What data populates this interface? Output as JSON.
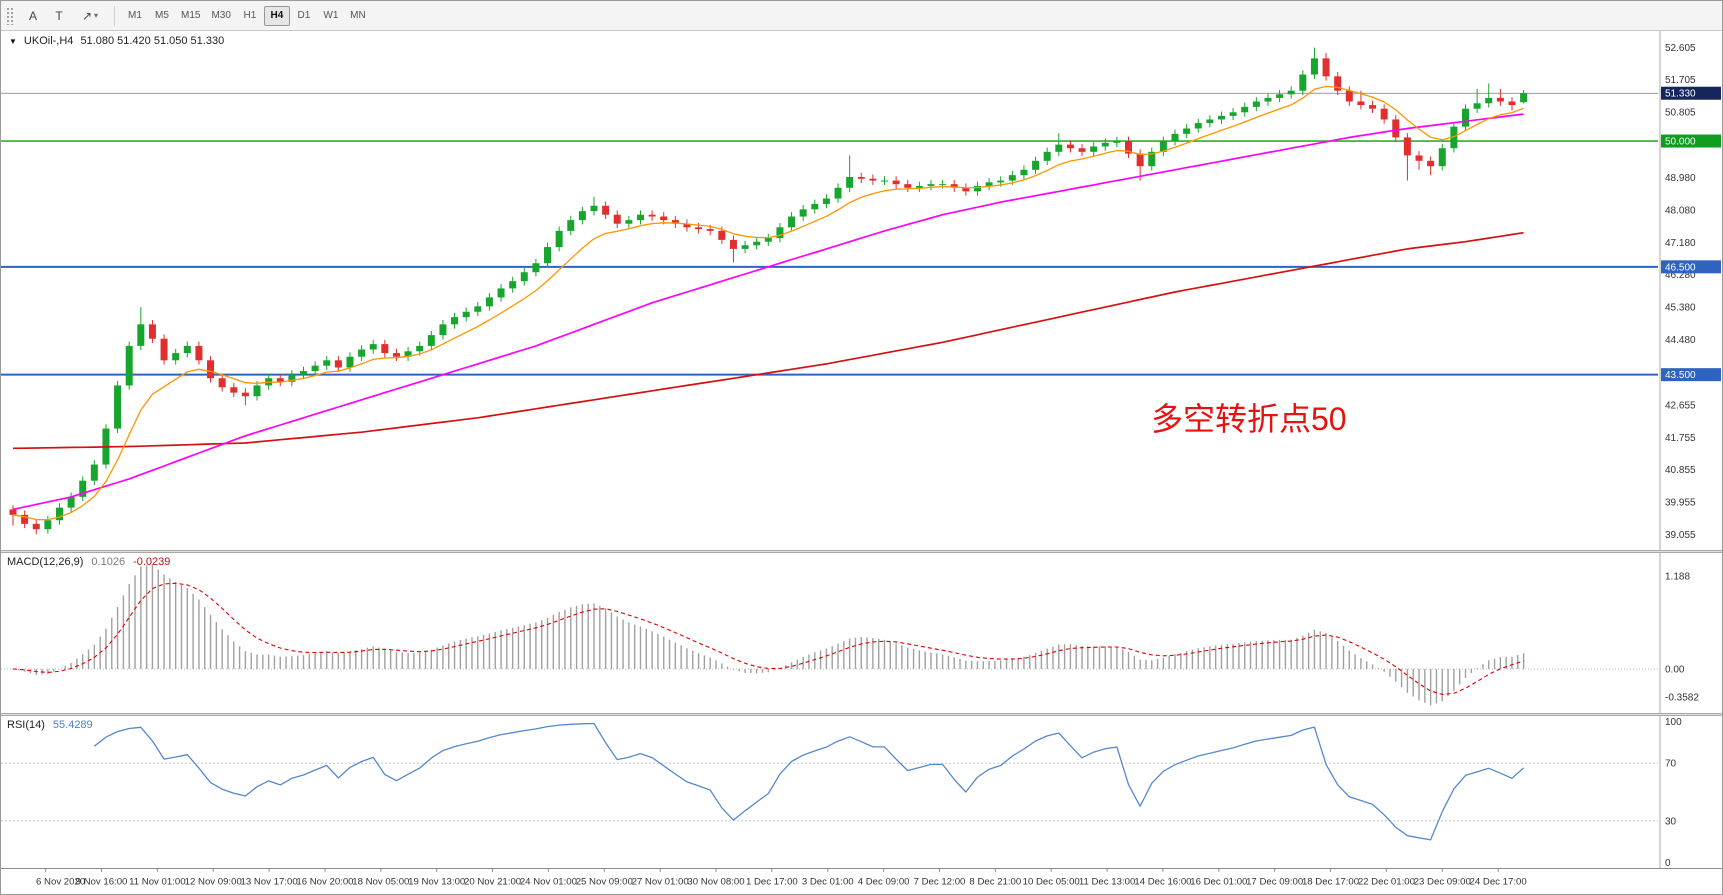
{
  "window": {
    "dropdown_arrow": "▼",
    "title_symbol": "UKOil-,H4",
    "ohlc": "51.080 51.420 51.050 51.330"
  },
  "toolbar": {
    "buttons": [
      {
        "id": "arrow-style",
        "label": "A"
      },
      {
        "id": "text-tool",
        "label": "T"
      }
    ],
    "cursor_tool_icon": "↗",
    "dropdown_caret": "▾",
    "timeframes": [
      "M1",
      "M5",
      "M15",
      "M30",
      "H1",
      "H4",
      "D1",
      "W1",
      "MN"
    ],
    "active_timeframe": "H4"
  },
  "annotation": {
    "text": "多空转折点50",
    "color": "#e81010"
  },
  "indicators": {
    "macd_label": {
      "name": "MACD(12,26,9)",
      "value": "0.1026",
      "signal_value": "-0.0239"
    },
    "rsi_label": {
      "name": "RSI(14)",
      "value": "55.4289"
    }
  },
  "chart_data": {
    "type": "candlestick",
    "symbol": "UKOil-",
    "timeframe": "H4",
    "price_range": [
      38.9,
      52.95
    ],
    "y_axis_labels": [
      "52.605",
      "51.705",
      "50.805",
      "48.980",
      "48.080",
      "47.180",
      "46.280",
      "45.380",
      "44.480",
      "42.655",
      "41.755",
      "40.855",
      "39.955",
      "39.055"
    ],
    "price_badges": [
      {
        "label": "51.330",
        "value": 51.33,
        "bg": "#16265c",
        "line": {
          "color": "#777777",
          "width": 0.8,
          "dash": "none"
        }
      },
      {
        "label": "50.000",
        "value": 50.0,
        "bg": "#0f9d20",
        "line": {
          "color": "#0aa000",
          "width": 1.4,
          "dash": "none"
        }
      },
      {
        "label": "46.500",
        "value": 46.5,
        "bg": "#2f63c0",
        "line": {
          "color": "#2f63c0",
          "width": 2,
          "dash": "none"
        }
      },
      {
        "label": "43.500",
        "value": 43.5,
        "bg": "#2f63c0",
        "line": {
          "color": "#2f63c0",
          "width": 2,
          "dash": "none"
        }
      }
    ],
    "x_axis_labels": [
      "6 Nov 2020",
      "9 Nov 16:00",
      "11 Nov 01:00",
      "12 Nov 09:00",
      "13 Nov 17:00",
      "16 Nov 20:00",
      "18 Nov 05:00",
      "19 Nov 13:00",
      "20 Nov 21:00",
      "24 Nov 01:00",
      "25 Nov 09:00",
      "27 Nov 01:00",
      "30 Nov 08:00",
      "1 Dec 17:00",
      "3 Dec 01:00",
      "4 Dec 09:00",
      "7 Dec 12:00",
      "8 Dec 21:00",
      "10 Dec 05:00",
      "11 Dec 13:00",
      "14 Dec 16:00",
      "16 Dec 01:00",
      "17 Dec 09:00",
      "18 Dec 17:00",
      "22 Dec 01:00",
      "23 Dec 09:00",
      "24 Dec 17:00"
    ],
    "candles": [
      [
        39.75,
        39.87,
        39.3,
        39.6
      ],
      [
        39.6,
        39.72,
        39.23,
        39.35
      ],
      [
        39.35,
        39.47,
        39.06,
        39.2
      ],
      [
        39.2,
        39.57,
        39.08,
        39.45
      ],
      [
        39.45,
        39.92,
        39.33,
        39.8
      ],
      [
        39.8,
        40.22,
        39.68,
        40.1
      ],
      [
        40.1,
        40.67,
        39.98,
        40.55
      ],
      [
        40.55,
        41.12,
        40.43,
        41.0
      ],
      [
        41.0,
        42.12,
        40.88,
        42.0
      ],
      [
        42.0,
        43.32,
        41.88,
        43.2
      ],
      [
        43.2,
        44.42,
        43.08,
        44.3
      ],
      [
        44.3,
        45.38,
        44.18,
        44.9
      ],
      [
        44.9,
        45.02,
        44.38,
        44.5
      ],
      [
        44.5,
        44.62,
        43.78,
        43.9
      ],
      [
        43.9,
        44.22,
        43.78,
        44.1
      ],
      [
        44.1,
        44.42,
        43.98,
        44.3
      ],
      [
        44.3,
        44.42,
        43.78,
        43.9
      ],
      [
        43.9,
        44.02,
        43.28,
        43.4
      ],
      [
        43.4,
        43.52,
        43.03,
        43.15
      ],
      [
        43.15,
        43.27,
        42.88,
        43.0
      ],
      [
        43.0,
        43.12,
        42.65,
        42.9
      ],
      [
        42.9,
        43.32,
        42.78,
        43.2
      ],
      [
        43.2,
        43.52,
        43.08,
        43.4
      ],
      [
        43.4,
        43.52,
        43.18,
        43.3
      ],
      [
        43.3,
        43.62,
        43.18,
        43.5
      ],
      [
        43.5,
        43.72,
        43.38,
        43.6
      ],
      [
        43.6,
        43.87,
        43.48,
        43.75
      ],
      [
        43.75,
        44.02,
        43.63,
        43.9
      ],
      [
        43.9,
        44.02,
        43.58,
        43.7
      ],
      [
        43.7,
        44.12,
        43.58,
        44.0
      ],
      [
        44.0,
        44.32,
        43.88,
        44.2
      ],
      [
        44.2,
        44.47,
        44.08,
        44.35
      ],
      [
        44.35,
        44.47,
        43.98,
        44.1
      ],
      [
        44.1,
        44.22,
        43.88,
        44.0
      ],
      [
        44.0,
        44.27,
        43.88,
        44.15
      ],
      [
        44.15,
        44.42,
        44.03,
        44.3
      ],
      [
        44.3,
        44.72,
        44.18,
        44.6
      ],
      [
        44.6,
        45.02,
        44.48,
        44.9
      ],
      [
        44.9,
        45.22,
        44.78,
        45.1
      ],
      [
        45.1,
        45.37,
        44.98,
        45.25
      ],
      [
        45.25,
        45.52,
        45.13,
        45.4
      ],
      [
        45.4,
        45.77,
        45.28,
        45.65
      ],
      [
        45.65,
        46.02,
        45.53,
        45.9
      ],
      [
        45.9,
        46.22,
        45.78,
        46.1
      ],
      [
        46.1,
        46.47,
        45.98,
        46.35
      ],
      [
        46.35,
        46.72,
        46.23,
        46.6
      ],
      [
        46.6,
        47.17,
        46.48,
        47.05
      ],
      [
        47.05,
        47.62,
        46.93,
        47.5
      ],
      [
        47.5,
        47.92,
        47.38,
        47.8
      ],
      [
        47.8,
        48.17,
        47.68,
        48.05
      ],
      [
        48.05,
        48.45,
        47.93,
        48.2
      ],
      [
        48.2,
        48.32,
        47.83,
        47.95
      ],
      [
        47.95,
        48.07,
        47.58,
        47.7
      ],
      [
        47.7,
        47.92,
        47.58,
        47.8
      ],
      [
        47.8,
        48.07,
        47.68,
        47.95
      ],
      [
        47.95,
        48.07,
        47.78,
        47.9
      ],
      [
        47.9,
        48.02,
        47.68,
        47.8
      ],
      [
        47.8,
        47.92,
        47.58,
        47.7
      ],
      [
        47.7,
        47.82,
        47.48,
        47.6
      ],
      [
        47.6,
        47.72,
        47.43,
        47.55
      ],
      [
        47.55,
        47.67,
        47.38,
        47.5
      ],
      [
        47.5,
        47.62,
        47.13,
        47.25
      ],
      [
        47.25,
        47.37,
        46.62,
        47.0
      ],
      [
        47.0,
        47.22,
        46.88,
        47.1
      ],
      [
        47.1,
        47.32,
        46.98,
        47.2
      ],
      [
        47.2,
        47.42,
        47.08,
        47.3
      ],
      [
        47.3,
        47.72,
        47.18,
        47.6
      ],
      [
        47.6,
        48.02,
        47.48,
        47.9
      ],
      [
        47.9,
        48.22,
        47.78,
        48.1
      ],
      [
        48.1,
        48.37,
        47.98,
        48.25
      ],
      [
        48.25,
        48.52,
        48.13,
        48.4
      ],
      [
        48.4,
        48.82,
        48.28,
        48.7
      ],
      [
        48.7,
        49.6,
        48.58,
        49.0
      ],
      [
        49.0,
        49.12,
        48.83,
        48.95
      ],
      [
        48.95,
        49.07,
        48.78,
        48.9
      ],
      [
        48.9,
        49.02,
        48.78,
        48.9
      ],
      [
        48.9,
        49.02,
        48.68,
        48.8
      ],
      [
        48.8,
        48.92,
        48.58,
        48.7
      ],
      [
        48.7,
        48.87,
        48.58,
        48.75
      ],
      [
        48.75,
        48.92,
        48.63,
        48.8
      ],
      [
        48.8,
        48.92,
        48.68,
        48.8
      ],
      [
        48.8,
        48.92,
        48.58,
        48.7
      ],
      [
        48.7,
        48.82,
        48.48,
        48.6
      ],
      [
        48.6,
        48.87,
        48.48,
        48.75
      ],
      [
        48.75,
        48.97,
        48.63,
        48.85
      ],
      [
        48.85,
        49.02,
        48.73,
        48.9
      ],
      [
        48.9,
        49.17,
        48.78,
        49.05
      ],
      [
        49.05,
        49.32,
        48.93,
        49.2
      ],
      [
        49.2,
        49.57,
        49.08,
        49.45
      ],
      [
        49.45,
        49.82,
        49.33,
        49.7
      ],
      [
        49.7,
        50.22,
        49.58,
        49.9
      ],
      [
        49.9,
        50.02,
        49.68,
        49.8
      ],
      [
        49.8,
        49.92,
        49.58,
        49.7
      ],
      [
        49.7,
        49.97,
        49.58,
        49.85
      ],
      [
        49.85,
        50.07,
        49.73,
        49.95
      ],
      [
        49.95,
        50.12,
        49.83,
        50.0
      ],
      [
        50.0,
        50.12,
        49.53,
        49.65
      ],
      [
        49.65,
        49.77,
        48.9,
        49.3
      ],
      [
        49.3,
        49.82,
        49.18,
        49.7
      ],
      [
        49.7,
        50.12,
        49.58,
        50.0
      ],
      [
        50.0,
        50.32,
        49.88,
        50.2
      ],
      [
        50.2,
        50.47,
        50.08,
        50.35
      ],
      [
        50.35,
        50.62,
        50.23,
        50.5
      ],
      [
        50.5,
        50.72,
        50.38,
        50.6
      ],
      [
        50.6,
        50.82,
        50.48,
        50.7
      ],
      [
        50.7,
        50.92,
        50.58,
        50.8
      ],
      [
        50.8,
        51.07,
        50.68,
        50.95
      ],
      [
        50.95,
        51.22,
        50.83,
        51.1
      ],
      [
        51.1,
        51.32,
        50.98,
        51.2
      ],
      [
        51.2,
        51.42,
        51.08,
        51.3
      ],
      [
        51.3,
        51.52,
        51.18,
        51.4
      ],
      [
        51.4,
        51.97,
        51.28,
        51.85
      ],
      [
        51.85,
        52.6,
        51.73,
        52.3
      ],
      [
        52.3,
        52.45,
        51.68,
        51.8
      ],
      [
        51.8,
        51.92,
        51.28,
        51.4
      ],
      [
        51.4,
        51.52,
        50.98,
        51.1
      ],
      [
        51.1,
        51.4,
        50.88,
        51.0
      ],
      [
        51.0,
        51.12,
        50.78,
        50.9
      ],
      [
        50.9,
        51.02,
        50.48,
        50.6
      ],
      [
        50.6,
        50.72,
        49.98,
        50.1
      ],
      [
        50.1,
        50.22,
        48.9,
        49.6
      ],
      [
        49.6,
        49.72,
        49.2,
        49.45
      ],
      [
        49.45,
        49.57,
        49.05,
        49.3
      ],
      [
        49.3,
        49.92,
        49.18,
        49.8
      ],
      [
        49.8,
        50.52,
        49.68,
        50.4
      ],
      [
        50.4,
        51.02,
        50.28,
        50.9
      ],
      [
        50.9,
        51.45,
        50.78,
        51.05
      ],
      [
        51.05,
        51.6,
        50.93,
        51.2
      ],
      [
        51.2,
        51.45,
        50.98,
        51.1
      ],
      [
        51.1,
        51.22,
        50.85,
        51.0
      ],
      [
        51.08,
        51.42,
        51.05,
        51.33
      ]
    ],
    "ma": {
      "fast": {
        "color": "#ff9500",
        "period": 8
      },
      "mid": {
        "color": "#ff00ff",
        "points": [
          [
            0,
            39.75
          ],
          [
            5,
            40.1
          ],
          [
            10,
            40.6
          ],
          [
            15,
            41.2
          ],
          [
            20,
            41.8
          ],
          [
            25,
            42.3
          ],
          [
            30,
            42.8
          ],
          [
            35,
            43.3
          ],
          [
            40,
            43.8
          ],
          [
            45,
            44.3
          ],
          [
            50,
            44.9
          ],
          [
            55,
            45.5
          ],
          [
            60,
            46.0
          ],
          [
            65,
            46.5
          ],
          [
            70,
            47.0
          ],
          [
            75,
            47.5
          ],
          [
            80,
            47.95
          ],
          [
            85,
            48.3
          ],
          [
            90,
            48.6
          ],
          [
            95,
            48.9
          ],
          [
            100,
            49.2
          ],
          [
            105,
            49.5
          ],
          [
            110,
            49.8
          ],
          [
            115,
            50.1
          ],
          [
            120,
            50.35
          ],
          [
            125,
            50.55
          ],
          [
            130,
            50.75
          ]
        ]
      },
      "slow": {
        "color": "#d41111",
        "points": [
          [
            0,
            41.45
          ],
          [
            10,
            41.5
          ],
          [
            20,
            41.6
          ],
          [
            25,
            41.75
          ],
          [
            30,
            41.9
          ],
          [
            35,
            42.1
          ],
          [
            40,
            42.3
          ],
          [
            45,
            42.55
          ],
          [
            50,
            42.8
          ],
          [
            55,
            43.05
          ],
          [
            60,
            43.3
          ],
          [
            65,
            43.55
          ],
          [
            70,
            43.8
          ],
          [
            75,
            44.1
          ],
          [
            80,
            44.4
          ],
          [
            85,
            44.75
          ],
          [
            90,
            45.1
          ],
          [
            95,
            45.45
          ],
          [
            100,
            45.8
          ],
          [
            105,
            46.1
          ],
          [
            110,
            46.4
          ],
          [
            115,
            46.7
          ],
          [
            120,
            47.0
          ],
          [
            125,
            47.2
          ],
          [
            130,
            47.45
          ]
        ]
      }
    },
    "macd": {
      "calc_fast": 6,
      "calc_slow": 13,
      "calc_signal": 5,
      "hist_color": "#a0a0a0",
      "signal_color": "#e00000",
      "range": [
        -0.5,
        1.42
      ],
      "axis_labels": [
        {
          "text": "1.188",
          "value": 1.188
        },
        {
          "text": "0.00",
          "value": 0
        },
        {
          "text": "-0.3582",
          "value": -0.3582
        }
      ]
    },
    "rsi": {
      "calc_period": 7,
      "color": "#5588cc",
      "levels": [
        70,
        30
      ],
      "range": [
        0,
        100
      ],
      "axis_labels": [
        {
          "text": "100",
          "value": 100
        },
        {
          "text": "70",
          "value": 70
        },
        {
          "text": "30",
          "value": 30
        },
        {
          "text": "0",
          "value": 0
        }
      ]
    },
    "colors": {
      "up": "#17a52e",
      "down": "#e12e2e",
      "background": "#ffffff",
      "axis_text": "#333333"
    }
  }
}
